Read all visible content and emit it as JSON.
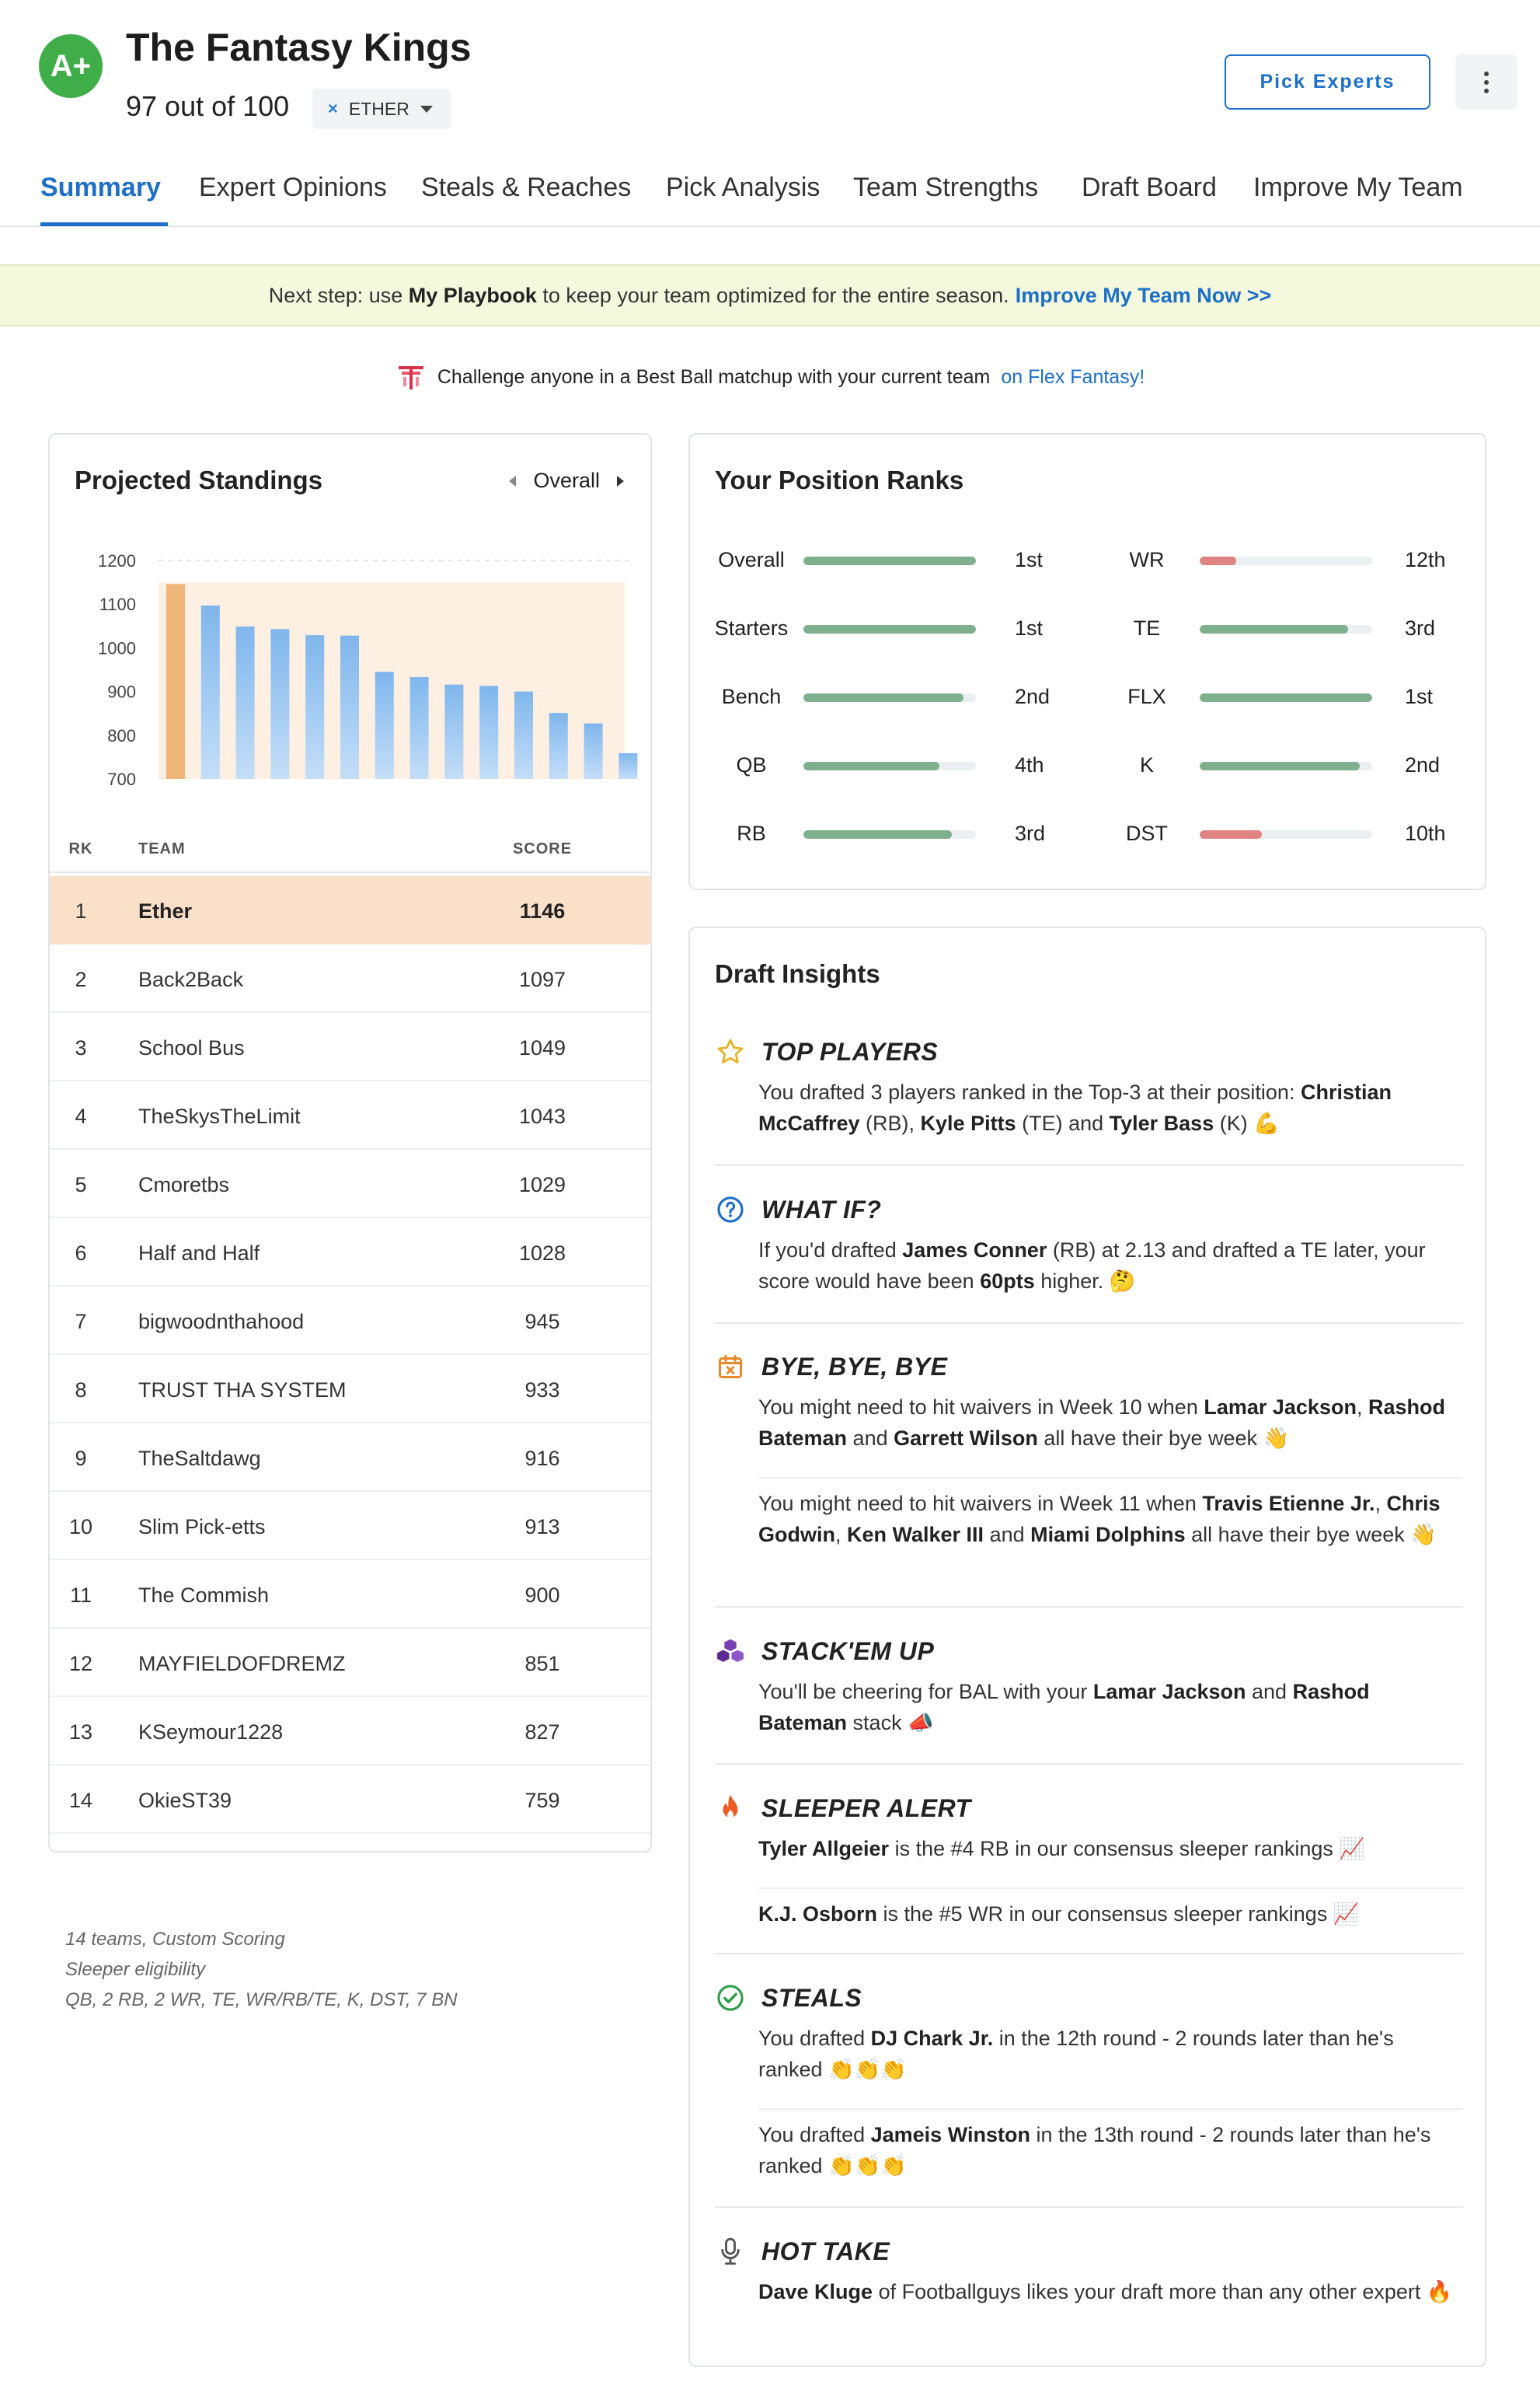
{
  "header": {
    "grade": "A+",
    "team_name": "The Fantasy Kings",
    "score_text": "97 out of 100",
    "team_select": {
      "clear_icon": "×",
      "value": "ETHER"
    },
    "pick_experts_label": "Pick Experts"
  },
  "tabs": [
    {
      "label": "Summary"
    },
    {
      "label": "Expert Opinions"
    },
    {
      "label": "Steals & Reaches"
    },
    {
      "label": "Pick Analysis"
    },
    {
      "label": "Team Strengths"
    },
    {
      "label": "Draft Board"
    },
    {
      "label": "Improve My Team"
    }
  ],
  "banner": {
    "prefix": "Next step: use ",
    "playbook": "My Playbook",
    "middle": " to keep your team optimized for the entire season.",
    "link": "Improve My Team Now >>"
  },
  "challenge": {
    "text": "Challenge anyone in a Best Ball matchup with your current team",
    "link": "on Flex Fantasy!"
  },
  "standings": {
    "title": "Projected Standings",
    "filter": "Overall",
    "columns": {
      "rk": "RK",
      "team": "TEAM",
      "score": "SCORE"
    },
    "rows": [
      {
        "rk": "1",
        "team": "Ether",
        "score": "1146"
      },
      {
        "rk": "2",
        "team": "Back2Back",
        "score": "1097"
      },
      {
        "rk": "3",
        "team": "School Bus",
        "score": "1049"
      },
      {
        "rk": "4",
        "team": "TheSkysTheLimit",
        "score": "1043"
      },
      {
        "rk": "5",
        "team": "Cmoretbs",
        "score": "1029"
      },
      {
        "rk": "6",
        "team": "Half and Half",
        "score": "1028"
      },
      {
        "rk": "7",
        "team": "bigwoodnthahood",
        "score": "945"
      },
      {
        "rk": "8",
        "team": "TRUST THA SYSTEM",
        "score": "933"
      },
      {
        "rk": "9",
        "team": "TheSaltdawg",
        "score": "916"
      },
      {
        "rk": "10",
        "team": "Slim Pick-etts",
        "score": "913"
      },
      {
        "rk": "11",
        "team": "The Commish",
        "score": "900"
      },
      {
        "rk": "12",
        "team": "MAYFIELDOFDREMZ",
        "score": "851"
      },
      {
        "rk": "13",
        "team": "KSeymour1228",
        "score": "827"
      },
      {
        "rk": "14",
        "team": "OkieST39",
        "score": "759"
      }
    ]
  },
  "chart_data": {
    "type": "bar",
    "categories": [
      "Ether",
      "Back2Back",
      "School Bus",
      "TheSkysTheLimit",
      "Cmoretbs",
      "Half and Half",
      "bigwoodnthahood",
      "TRUST THA SYSTEM",
      "TheSaltdawg",
      "Slim Pick-etts",
      "The Commish",
      "MAYFIELDOFDREMZ",
      "KSeymour1228",
      "OkieST39"
    ],
    "values": [
      1146,
      1097,
      1049,
      1043,
      1029,
      1028,
      945,
      933,
      916,
      913,
      900,
      851,
      827,
      759
    ],
    "yticks": [
      "1200",
      "1100",
      "1000",
      "900",
      "800",
      "700"
    ],
    "ylim": [
      700,
      1200
    ],
    "highlight_index": 0,
    "colors": {
      "highlight": "#efb578",
      "bar_top": "#7fb6ec",
      "bar_bottom": "#c4def8",
      "band": "#fdf0e3"
    }
  },
  "footnote": {
    "line1": "14 teams, Custom Scoring",
    "line2": "Sleeper eligibility",
    "line3": "QB, 2 RB, 2 WR, TE, WR/RB/TE, K, DST, 7 BN"
  },
  "position_ranks": {
    "title": "Your Position Ranks",
    "left": [
      {
        "label": "Overall",
        "value": "1st",
        "fill": 1.0,
        "color": "#7fb08e"
      },
      {
        "label": "Starters",
        "value": "1st",
        "fill": 1.0,
        "color": "#7fb08e"
      },
      {
        "label": "Bench",
        "value": "2nd",
        "fill": 0.93,
        "color": "#7fb08e"
      },
      {
        "label": "QB",
        "value": "4th",
        "fill": 0.79,
        "color": "#7fb08e"
      },
      {
        "label": "RB",
        "value": "3rd",
        "fill": 0.86,
        "color": "#7fb08e"
      }
    ],
    "right": [
      {
        "label": "WR",
        "value": "12th",
        "fill": 0.21,
        "color": "#e08383"
      },
      {
        "label": "TE",
        "value": "3rd",
        "fill": 0.86,
        "color": "#7fb08e"
      },
      {
        "label": "FLX",
        "value": "1st",
        "fill": 1.0,
        "color": "#7fb08e"
      },
      {
        "label": "K",
        "value": "2nd",
        "fill": 0.93,
        "color": "#7fb08e"
      },
      {
        "label": "DST",
        "value": "10th",
        "fill": 0.36,
        "color": "#e08383"
      }
    ]
  },
  "insights": {
    "title": "Draft Insights",
    "top_players": {
      "title": "TOP PLAYERS",
      "t1": "You drafted 3 players ranked in the Top-3 at their position: ",
      "p1": "Christian McCaffrey",
      "t2": " (RB), ",
      "p2": "Kyle Pitts",
      "t3": " (TE) and ",
      "p3": "Tyler Bass",
      "t4": " (K) 💪"
    },
    "what_if": {
      "title": "WHAT IF?",
      "t1": "If you'd drafted ",
      "p1": "James Conner",
      "t2": " (RB) at 2.13 and drafted a TE later, your score would have been ",
      "p2": "60pts",
      "t3": " higher. 🤔"
    },
    "bye": {
      "title": "BYE, BYE, BYE",
      "a_t1": "You might need to hit waivers in Week 10 when ",
      "a_p1": "Lamar Jackson",
      "a_t2": ", ",
      "a_p2": "Rashod Bateman",
      "a_t3": " and ",
      "a_p3": "Garrett Wilson",
      "a_t4": " all have their bye week 👋",
      "b_t1": "You might need to hit waivers in Week 11 when ",
      "b_p1": "Travis Etienne Jr.",
      "b_t2": ", ",
      "b_p2": "Chris Godwin",
      "b_t3": ", ",
      "b_p3": "Ken Walker III",
      "b_t4": " and ",
      "b_p4": "Miami Dolphins",
      "b_t5": " all have their bye week 👋"
    },
    "stack": {
      "title": "STACK'EM UP",
      "t1": "You'll be cheering for BAL with your ",
      "p1": "Lamar Jackson",
      "t2": " and ",
      "p2": "Rashod Bateman",
      "t3": " stack 📣"
    },
    "sleeper": {
      "title": "SLEEPER ALERT",
      "a_p1": "Tyler Allgeier",
      "a_t1": " is the #4 RB in our consensus sleeper rankings 📈",
      "b_p1": "K.J. Osborn",
      "b_t1": " is the #5 WR in our consensus sleeper rankings 📈"
    },
    "steals": {
      "title": "STEALS",
      "a_t1": "You drafted ",
      "a_p1": "DJ Chark Jr.",
      "a_t2": " in the 12th round - 2 rounds later than he's ranked 👏👏👏",
      "b_t1": "You drafted ",
      "b_p1": "Jameis Winston",
      "b_t2": " in the 13th round - 2 rounds later than he's ranked 👏👏👏"
    },
    "hot_take": {
      "title": "HOT TAKE",
      "p1": "Dave Kluge",
      "t1": " of Footballguys likes your draft more than any other expert 🔥"
    }
  }
}
